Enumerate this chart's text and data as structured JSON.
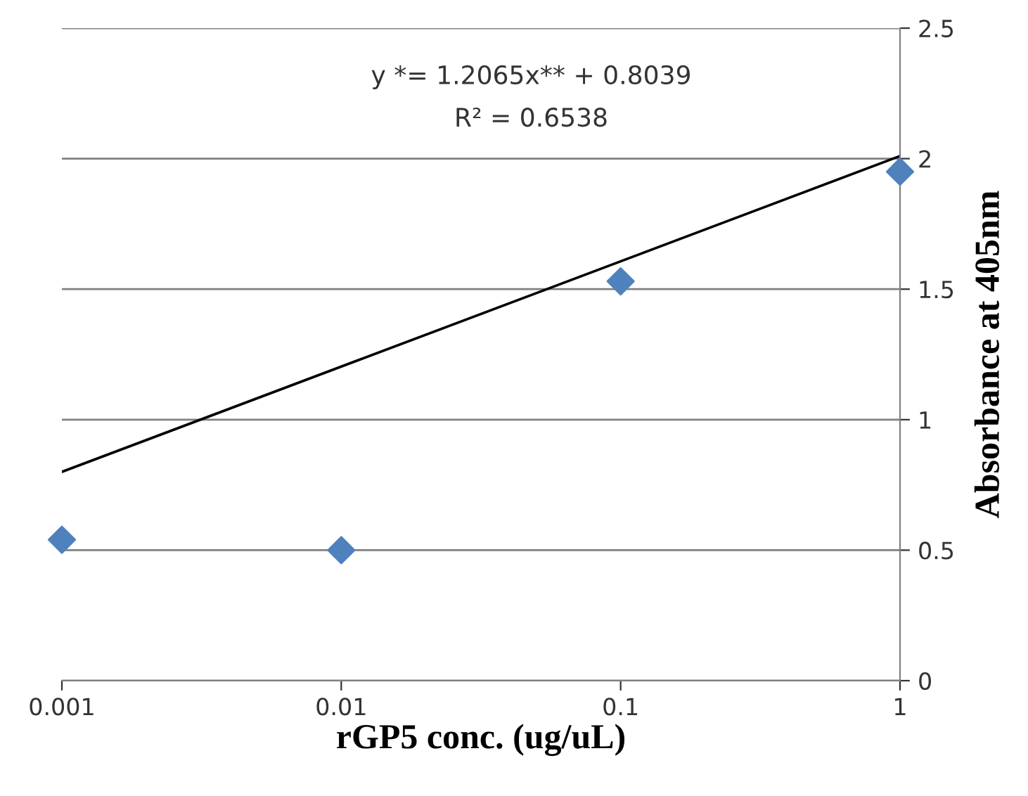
{
  "chart_data": {
    "type": "scatter",
    "xlabel": "rGP5 conc. (ug/uL)",
    "ylabel": "Absorbance at 405nm",
    "x": [
      0.001,
      0.01,
      0.1,
      1
    ],
    "series": [
      {
        "color": "#4f81bd",
        "marker": "diamond",
        "values": [
          0.54,
          0.5,
          1.53,
          1.95
        ]
      },
      {
        "type": "line",
        "color": "#000000",
        "x": [
          0.001,
          1
        ],
        "values": [
          0.8,
          2.01
        ],
        "line_style": "solid"
      }
    ],
    "annotations": [
      "y *= 1.2065x** + 0.8039",
      "R² = 0.6538"
    ],
    "log": "x",
    "xlim": [
      0.001,
      1
    ],
    "xticks": [
      0.001,
      0.01,
      0.1,
      1
    ],
    "ylim": [
      0,
      2.5
    ],
    "yticks": [
      0,
      0.5,
      1,
      1.5,
      2,
      2.5
    ],
    "grid": "y"
  }
}
